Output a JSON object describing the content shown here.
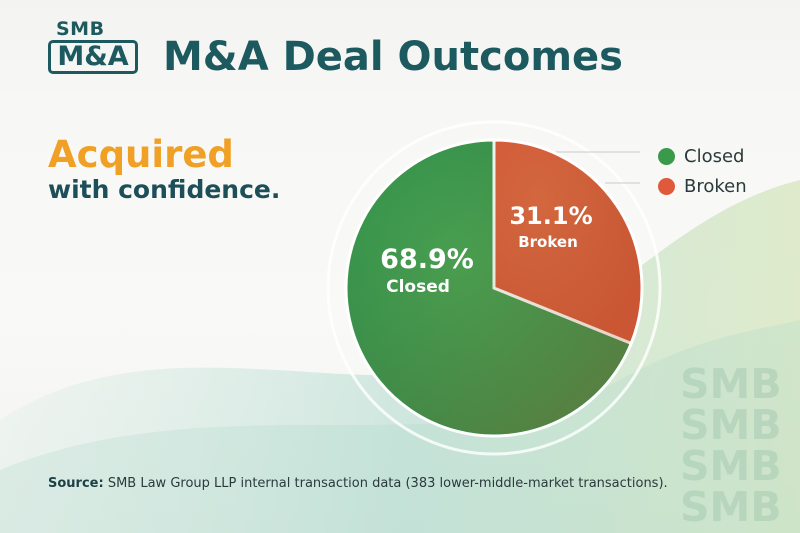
{
  "brand": {
    "logo_small": "SMB",
    "logo_main": "M&A",
    "watermark": [
      "SMB",
      "SMB",
      "SMB",
      "SMB"
    ]
  },
  "header": {
    "title": "M&A Deal Outcomes"
  },
  "hero": {
    "headline": "Acquired",
    "subheadline": "with confidence."
  },
  "colors": {
    "closed": "#3a9a4c",
    "broken": "#e0593a",
    "brand_teal": "#1d5a60",
    "accent_orange": "#f0a024"
  },
  "chart_data": {
    "type": "pie",
    "slices": [
      {
        "label": "Closed",
        "value": 68.9,
        "display": "68.9%"
      },
      {
        "label": "Broken",
        "value": 31.1,
        "display": "31.1%"
      }
    ],
    "legend": [
      "Closed",
      "Broken"
    ],
    "legend_position": "top-right"
  },
  "source": {
    "prefix": "Source:",
    "text": "SMB Law Group LLP internal transaction data (383 lower-middle-market transactions)."
  }
}
